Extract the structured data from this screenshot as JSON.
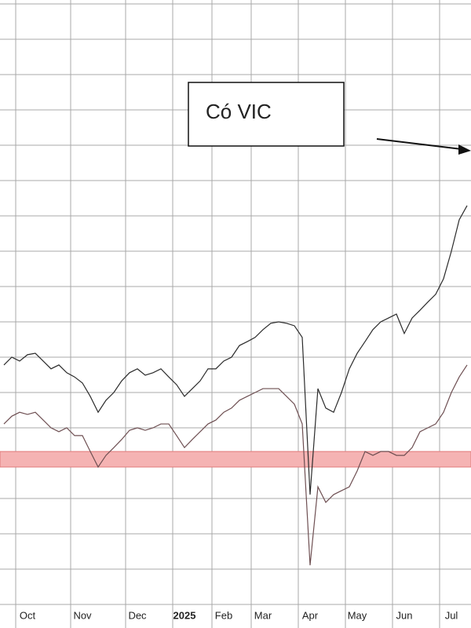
{
  "chart_data": {
    "type": "line",
    "annotation": "Có VIC",
    "categories": [
      null,
      null,
      null,
      "Oct",
      null,
      null,
      null,
      null,
      null,
      null,
      "Nov",
      null,
      null,
      null,
      null,
      null,
      null,
      "Dec",
      null,
      null,
      null,
      null,
      null,
      "2025",
      null,
      null,
      null,
      null,
      "Feb",
      null,
      null,
      null,
      null,
      "Mar",
      null,
      null,
      null,
      null,
      null,
      "Apr",
      null,
      null,
      null,
      null,
      null,
      "May",
      null,
      null,
      null,
      null,
      null,
      "Jun",
      null,
      null,
      null,
      null,
      null,
      "Jul",
      null,
      null
    ],
    "series": [
      {
        "color": "#2b2b2b",
        "values": [
          6.78,
          7.0,
          6.89,
          7.07,
          7.11,
          6.89,
          6.67,
          6.78,
          6.56,
          6.44,
          6.27,
          5.89,
          5.44,
          5.78,
          6.0,
          6.33,
          6.56,
          6.67,
          6.49,
          6.56,
          6.67,
          6.44,
          6.22,
          5.89,
          6.11,
          6.33,
          6.67,
          6.67,
          6.89,
          7.0,
          7.33,
          7.44,
          7.56,
          7.78,
          7.96,
          8.0,
          7.96,
          7.89,
          7.56,
          3.11,
          6.11,
          5.56,
          5.44,
          6.0,
          6.67,
          7.11,
          7.44,
          7.78,
          8.0,
          8.11,
          8.22,
          7.67,
          8.11,
          8.33,
          8.56,
          8.78,
          9.22,
          10.0,
          10.89,
          11.29
        ]
      },
      {
        "color": "#6e4f52",
        "values": [
          5.11,
          5.33,
          5.44,
          5.38,
          5.44,
          5.22,
          5.0,
          4.89,
          5.0,
          4.78,
          4.78,
          4.33,
          3.89,
          4.22,
          4.44,
          4.67,
          4.93,
          5.0,
          4.93,
          5.0,
          5.11,
          5.11,
          4.78,
          4.44,
          4.67,
          4.89,
          5.11,
          5.22,
          5.44,
          5.56,
          5.78,
          5.89,
          6.0,
          6.11,
          6.11,
          6.11,
          5.89,
          5.67,
          5.11,
          1.11,
          3.33,
          2.89,
          3.11,
          3.22,
          3.33,
          3.78,
          4.33,
          4.22,
          4.33,
          4.33,
          4.22,
          4.22,
          4.44,
          4.89,
          5.0,
          5.11,
          5.44,
          6.0,
          6.44,
          6.78
        ]
      }
    ],
    "band": {
      "range": [
        3.89,
        4.33
      ],
      "color": "#f5b3b3",
      "edge": "#e07a7a"
    },
    "ylim": [
      0,
      17
    ],
    "yticks": [
      0,
      1,
      2,
      3,
      4,
      5,
      6,
      7,
      8,
      9,
      10,
      11,
      12,
      13,
      14,
      15,
      16,
      17
    ],
    "grid": true
  }
}
